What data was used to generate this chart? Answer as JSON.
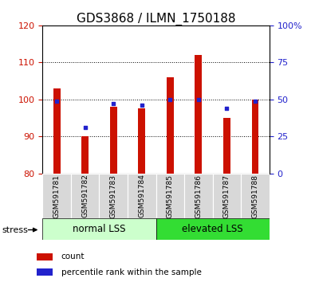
{
  "title": "GDS3868 / ILMN_1750188",
  "categories": [
    "GSM591781",
    "GSM591782",
    "GSM591783",
    "GSM591784",
    "GSM591785",
    "GSM591786",
    "GSM591787",
    "GSM591788"
  ],
  "count_values": [
    103,
    90,
    98,
    97.5,
    106,
    112,
    95,
    100
  ],
  "percentile_values": [
    49,
    31,
    47,
    46,
    50,
    50,
    44,
    49
  ],
  "ylim_left": [
    80,
    120
  ],
  "ylim_right": [
    0,
    100
  ],
  "yticks_left": [
    80,
    90,
    100,
    110,
    120
  ],
  "yticks_right": [
    0,
    25,
    50,
    75,
    100
  ],
  "bar_color": "#cc1100",
  "dot_color": "#2222cc",
  "bar_bottom": 80,
  "group_labels": [
    "normal LSS",
    "elevated LSS"
  ],
  "group_ranges": [
    [
      0,
      4
    ],
    [
      4,
      8
    ]
  ],
  "group_colors_light": "#ccffcc",
  "group_colors_dark": "#33dd33",
  "stress_label": "stress",
  "legend_items": [
    "count",
    "percentile rank within the sample"
  ],
  "legend_colors": [
    "#cc1100",
    "#2222cc"
  ],
  "left_tick_color": "#cc1100",
  "right_tick_color": "#2222cc",
  "title_fontsize": 11,
  "tick_fontsize": 8,
  "label_fontsize": 8,
  "grid_yticks": [
    90,
    100,
    110
  ]
}
